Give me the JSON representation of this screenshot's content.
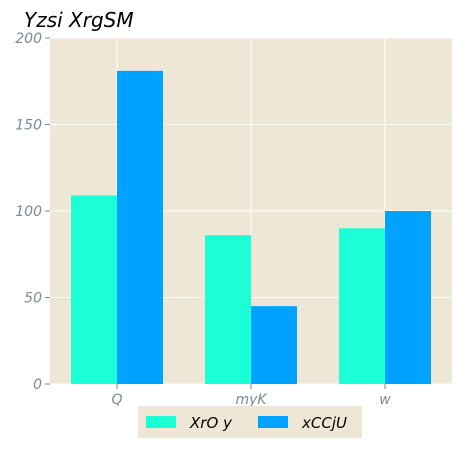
{
  "chart_data": {
    "type": "bar",
    "title": "Yzsi XrgSM",
    "xlabel": "",
    "ylabel": "",
    "categories": [
      "Q",
      "myK",
      "w"
    ],
    "series": [
      {
        "name": "XrO y",
        "values": [
          109,
          86,
          90
        ],
        "color": "#1affd5"
      },
      {
        "name": "xCCjU",
        "values": [
          181,
          45,
          100
        ],
        "color": "#00a2ff"
      }
    ],
    "ylim": [
      0,
      200
    ],
    "yticks": [
      "0",
      "50",
      "100",
      "150",
      "200"
    ],
    "grid": true,
    "legend_position": "bottom-center",
    "background_color": "#efe7d6",
    "grid_color": "#ffffff"
  }
}
